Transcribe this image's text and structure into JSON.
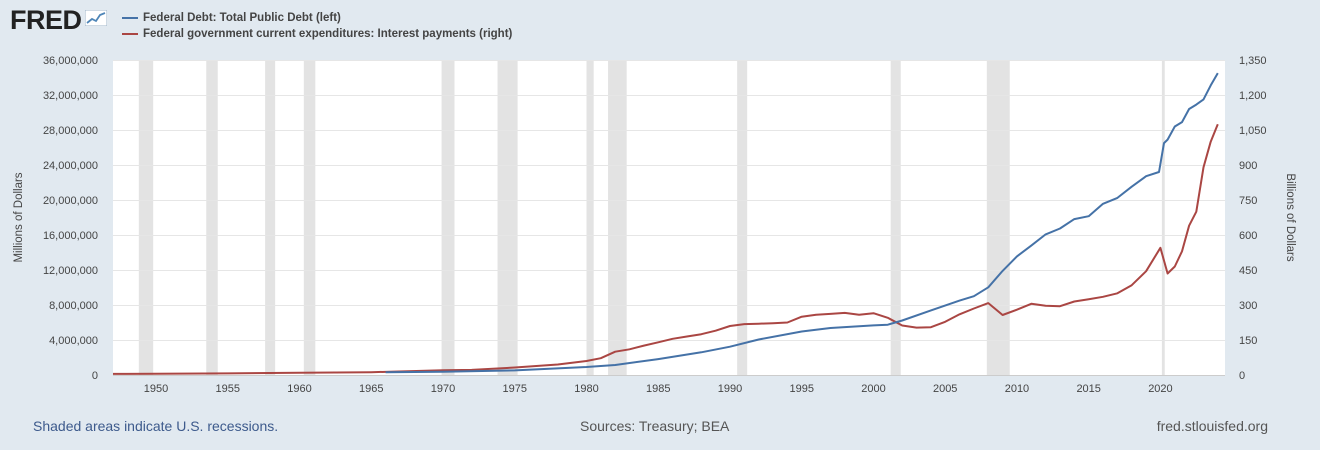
{
  "header": {
    "logo_text": "FRED",
    "logo_icon": "fred-trend-icon"
  },
  "colors": {
    "background": "#e1e9f0",
    "plot_background": "#ffffff",
    "recession_shade": "#e3e3e3",
    "debt_series": "#4572a7",
    "interest_series": "#aa4643",
    "grid": "#e6e6e6"
  },
  "footer": {
    "recession_note": "Shaded areas indicate U.S. recessions.",
    "sources": "Sources: Treasury; BEA",
    "site": "fred.stlouisfed.org"
  },
  "chart_data": {
    "type": "line",
    "xlim": [
      1947,
      2024.5
    ],
    "x_ticks": [
      1950,
      1955,
      1960,
      1965,
      1970,
      1975,
      1980,
      1985,
      1990,
      1995,
      2000,
      2005,
      2010,
      2015,
      2020
    ],
    "x_tick_labels": [
      "1950",
      "1955",
      "1960",
      "1965",
      "1970",
      "1975",
      "1980",
      "1985",
      "1990",
      "1995",
      "2000",
      "2005",
      "2010",
      "2015",
      "2020"
    ],
    "y_left": {
      "label": "Millions of Dollars",
      "range": [
        0,
        36000000
      ],
      "ticks": [
        0,
        4000000,
        8000000,
        12000000,
        16000000,
        20000000,
        24000000,
        28000000,
        32000000,
        36000000
      ],
      "tick_labels": [
        "0",
        "4,000,000",
        "8,000,000",
        "12,000,000",
        "16,000,000",
        "20,000,000",
        "24,000,000",
        "28,000,000",
        "32,000,000",
        "36,000,000"
      ]
    },
    "y_right": {
      "label": "Billions of Dollars",
      "range": [
        0,
        1350
      ],
      "ticks": [
        0,
        150,
        300,
        450,
        600,
        750,
        900,
        1050,
        1200,
        1350
      ],
      "tick_labels": [
        "0",
        "150",
        "300",
        "450",
        "600",
        "750",
        "900",
        "1,050",
        "1,200",
        "1,350"
      ]
    },
    "recessions": [
      [
        1948.8,
        1949.8
      ],
      [
        1953.5,
        1954.3
      ],
      [
        1957.6,
        1958.3
      ],
      [
        1960.3,
        1961.1
      ],
      [
        1969.9,
        1970.8
      ],
      [
        1973.8,
        1975.2
      ],
      [
        1980.0,
        1980.5
      ],
      [
        1981.5,
        1982.8
      ],
      [
        1990.5,
        1991.2
      ],
      [
        2001.2,
        2001.9
      ],
      [
        2007.9,
        2009.5
      ],
      [
        2020.1,
        2020.3
      ]
    ],
    "series": [
      {
        "name": "Federal Debt: Total Public Debt (left)",
        "axis": "left",
        "color": "#4572a7",
        "x": [
          1966,
          1970,
          1975,
          1980,
          1982,
          1985,
          1988,
          1990,
          1992,
          1995,
          1997,
          2000,
          2001,
          2002,
          2004,
          2006,
          2007,
          2008,
          2009,
          2010,
          2011,
          2012,
          2013,
          2014,
          2015,
          2016,
          2017,
          2018,
          2019,
          2019.9,
          2020.25,
          2020.5,
          2021,
          2021.5,
          2022,
          2022.5,
          2023,
          2023.5,
          2024
        ],
        "values": [
          320000,
          380000,
          530000,
          910000,
          1140000,
          1820000,
          2600000,
          3230000,
          4060000,
          4970000,
          5370000,
          5670000,
          5750000,
          6230000,
          7380000,
          8500000,
          9010000,
          10020000,
          11900000,
          13560000,
          14790000,
          16070000,
          16740000,
          17820000,
          18150000,
          19570000,
          20240000,
          21520000,
          22720000,
          23200000,
          26500000,
          26900000,
          28400000,
          28900000,
          30400000,
          30900000,
          31500000,
          33100000,
          34500000
        ]
      },
      {
        "name": "Federal government current expenditures: Interest payments (right)",
        "axis": "right",
        "color": "#aa4643",
        "x": [
          1947,
          1950,
          1955,
          1960,
          1965,
          1970,
          1972,
          1975,
          1978,
          1980,
          1981,
          1982,
          1983,
          1984,
          1985,
          1986,
          1987,
          1988,
          1989,
          1990,
          1991,
          1992,
          1993,
          1994,
          1995,
          1996,
          1997,
          1998,
          1999,
          2000,
          2001,
          2002,
          2003,
          2004,
          2005,
          2006,
          2007,
          2008,
          2009,
          2010,
          2011,
          2012,
          2013,
          2014,
          2015,
          2016,
          2017,
          2018,
          2019,
          2020,
          2020.5,
          2021,
          2021.5,
          2022,
          2022.5,
          2023,
          2023.5,
          2024
        ],
        "values": [
          4.5,
          5,
          7,
          10,
          12,
          20,
          22,
          32,
          45,
          60,
          72,
          100,
          110,
          126,
          140,
          155,
          165,
          175,
          190,
          210,
          218,
          220,
          222,
          225,
          250,
          258,
          262,
          266,
          258,
          265,
          245,
          212,
          203,
          205,
          228,
          260,
          285,
          308,
          257,
          280,
          305,
          297,
          295,
          315,
          325,
          335,
          350,
          385,
          445,
          545,
          435,
          465,
          530,
          640,
          700,
          890,
          1000,
          1075
        ]
      }
    ]
  }
}
